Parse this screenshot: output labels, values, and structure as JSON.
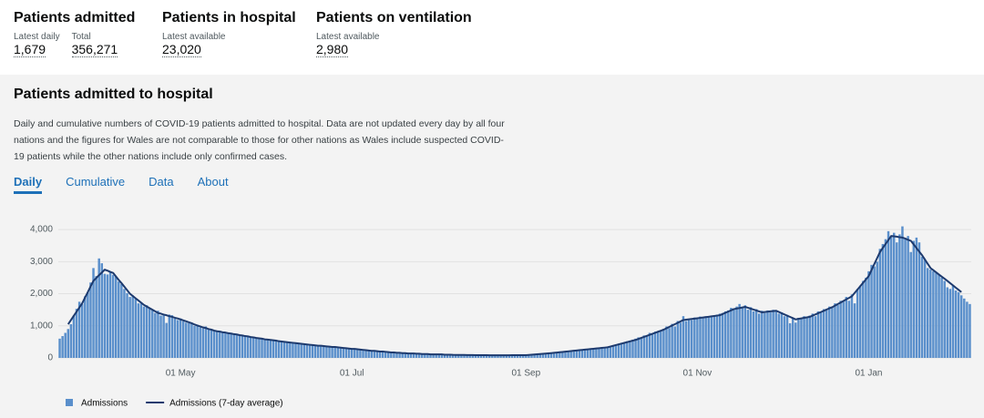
{
  "header": {
    "metrics": [
      {
        "title": "Patients admitted",
        "items": [
          {
            "label": "Latest daily",
            "value": "1,679"
          },
          {
            "label": "Total",
            "value": "356,271"
          }
        ]
      },
      {
        "title": "Patients in hospital",
        "items": [
          {
            "label": "Latest available",
            "value": "23,020"
          }
        ]
      },
      {
        "title": "Patients on ventilation",
        "items": [
          {
            "label": "Latest available",
            "value": "2,980"
          }
        ]
      }
    ]
  },
  "card": {
    "title": "Patients admitted to hospital",
    "description": "Daily and cumulative numbers of COVID-19 patients admitted to hospital. Data are not updated every day by all four nations and the figures for Wales are not comparable to those for other nations as Wales include suspected COVID-19 patients while the other nations include only confirmed cases.",
    "tabs": [
      "Daily",
      "Cumulative",
      "Data",
      "About"
    ],
    "active_tab": 0
  },
  "chart_data": {
    "type": "bar",
    "grid": true,
    "ylim": [
      0,
      4400
    ],
    "yticks": [
      0,
      {
        "value": 1000,
        "label": "1,000"
      },
      {
        "value": 2000,
        "label": "2,000"
      },
      {
        "value": 3000,
        "label": "3,000"
      },
      {
        "value": 4000,
        "label": "4,000"
      }
    ],
    "categories": [
      null,
      null,
      null,
      null,
      null,
      null,
      null,
      null,
      null,
      null,
      null,
      null,
      null,
      null,
      null,
      null,
      null,
      null,
      null,
      null,
      null,
      null,
      null,
      null,
      null,
      null,
      null,
      null,
      null,
      null,
      null,
      null,
      null,
      null,
      null,
      null,
      null,
      null,
      null,
      null,
      null,
      null,
      null,
      "01 May",
      null,
      null,
      null,
      null,
      null,
      null,
      null,
      null,
      null,
      null,
      null,
      null,
      null,
      null,
      null,
      null,
      null,
      null,
      null,
      null,
      null,
      null,
      null,
      null,
      null,
      null,
      null,
      null,
      null,
      null,
      null,
      null,
      null,
      null,
      null,
      null,
      null,
      null,
      null,
      null,
      null,
      null,
      null,
      null,
      null,
      null,
      null,
      null,
      null,
      null,
      null,
      null,
      null,
      null,
      null,
      null,
      null,
      null,
      null,
      null,
      "01 Jul",
      null,
      null,
      null,
      null,
      null,
      null,
      null,
      null,
      null,
      null,
      null,
      null,
      null,
      null,
      null,
      null,
      null,
      null,
      null,
      null,
      null,
      null,
      null,
      null,
      null,
      null,
      null,
      null,
      null,
      null,
      null,
      null,
      null,
      null,
      null,
      null,
      null,
      null,
      null,
      null,
      null,
      null,
      null,
      null,
      null,
      null,
      null,
      null,
      null,
      null,
      null,
      null,
      null,
      null,
      null,
      null,
      null,
      null,
      null,
      null,
      null,
      "01 Sep",
      null,
      null,
      null,
      null,
      null,
      null,
      null,
      null,
      null,
      null,
      null,
      null,
      null,
      null,
      null,
      null,
      null,
      null,
      null,
      null,
      null,
      null,
      null,
      null,
      null,
      null,
      null,
      null,
      null,
      null,
      null,
      null,
      null,
      null,
      null,
      null,
      null,
      null,
      null,
      null,
      null,
      null,
      null,
      null,
      null,
      null,
      null,
      null,
      null,
      null,
      null,
      null,
      null,
      null,
      null,
      null,
      null,
      null,
      null,
      null,
      "01 Nov",
      null,
      null,
      null,
      null,
      null,
      null,
      null,
      null,
      null,
      null,
      null,
      null,
      null,
      null,
      null,
      null,
      null,
      null,
      null,
      null,
      null,
      null,
      null,
      null,
      null,
      null,
      null,
      null,
      null,
      null,
      null,
      null,
      null,
      null,
      null,
      null,
      null,
      null,
      null,
      null,
      null,
      null,
      null,
      null,
      null,
      null,
      null,
      null,
      null,
      null,
      null,
      null,
      null,
      null,
      null,
      null,
      null,
      null,
      null,
      null,
      "01 Jan",
      null,
      null,
      null,
      null,
      null,
      null,
      null,
      null,
      null,
      null,
      null,
      null,
      null,
      null,
      null,
      null,
      null,
      null,
      null,
      null,
      null,
      null,
      null,
      null,
      null,
      null,
      null,
      null,
      null,
      null,
      null,
      null,
      null,
      null,
      null,
      null
    ],
    "series": [
      {
        "name": "Admissions",
        "type": "bar",
        "color": "#5a8fcb",
        "values": [
          600,
          680,
          780,
          900,
          1050,
          1320,
          1530,
          1750,
          1680,
          1920,
          2050,
          2350,
          2800,
          2550,
          3100,
          2950,
          2620,
          2600,
          2700,
          2590,
          2530,
          2380,
          2300,
          2150,
          2020,
          1900,
          1950,
          1840,
          1700,
          1690,
          1600,
          1640,
          1560,
          1480,
          1400,
          1470,
          1320,
          1330,
          1090,
          1350,
          1330,
          1220,
          1180,
          1230,
          1140,
          1100,
          1080,
          1060,
          1000,
          1030,
          950,
          920,
          980,
          880,
          860,
          830,
          820,
          840,
          780,
          800,
          760,
          780,
          730,
          720,
          700,
          720,
          670,
          680,
          640,
          660,
          600,
          620,
          610,
          570,
          580,
          550,
          560,
          530,
          510,
          520,
          490,
          500,
          470,
          480,
          450,
          460,
          430,
          440,
          410,
          420,
          390,
          400,
          370,
          380,
          350,
          360,
          340,
          350,
          320,
          330,
          300,
          310,
          290,
          280,
          270,
          290,
          250,
          260,
          240,
          250,
          220,
          230,
          200,
          210,
          190,
          200,
          180,
          170,
          180,
          160,
          160,
          150,
          150,
          140,
          145,
          130,
          135,
          125,
          130,
          120,
          115,
          110,
          115,
          105,
          110,
          100,
          105,
          95,
          100,
          95,
          92,
          90,
          95,
          88,
          92,
          86,
          90,
          85,
          88,
          84,
          86,
          82,
          86,
          80,
          85,
          82,
          84,
          80,
          86,
          82,
          84,
          86,
          82,
          88,
          84,
          86,
          90,
          95,
          100,
          104,
          112,
          118,
          130,
          132,
          145,
          148,
          160,
          165,
          180,
          185,
          195,
          200,
          215,
          210,
          235,
          240,
          250,
          255,
          270,
          265,
          290,
          285,
          310,
          300,
          330,
          340,
          370,
          390,
          420,
          430,
          470,
          480,
          520,
          510,
          570,
          600,
          640,
          610,
          700,
          680,
          780,
          730,
          820,
          800,
          860,
          900,
          980,
          930,
          1060,
          980,
          1150,
          1100,
          1300,
          1150,
          1220,
          1180,
          1260,
          1210,
          1290,
          1240,
          1300,
          1260,
          1310,
          1290,
          1350,
          1380,
          1400,
          1450,
          1480,
          1560,
          1540,
          1600,
          1680,
          1550,
          1640,
          1500,
          1580,
          1450,
          1520,
          1380,
          1470,
          1400,
          1480,
          1420,
          1500,
          1450,
          1380,
          1420,
          1300,
          1340,
          1080,
          1250,
          1100,
          1250,
          1220,
          1300,
          1260,
          1320,
          1380,
          1300,
          1450,
          1420,
          1520,
          1480,
          1600,
          1560,
          1700,
          1650,
          1780,
          1750,
          1900,
          1780,
          1980,
          1700,
          2150,
          2250,
          2400,
          2500,
          2700,
          2900,
          2850,
          3000,
          3400,
          3550,
          3700,
          3950,
          3800,
          3900,
          3600,
          3850,
          4100,
          3700,
          3800,
          3300,
          3650,
          3750,
          3600,
          3150,
          3050,
          2800,
          2750,
          2700,
          2650,
          2600,
          2500,
          2400,
          2200,
          2150,
          2250,
          2100,
          2050,
          1950,
          1850,
          1750,
          1679
        ]
      },
      {
        "name": "Admissions (7-day average)",
        "type": "line",
        "color": "#1d3a6e",
        "values": [
          null,
          null,
          null,
          1050,
          1180,
          1310,
          1440,
          1570,
          1700,
          1880,
          2050,
          2230,
          2400,
          2490,
          2580,
          2660,
          2750,
          2720,
          2680,
          2650,
          2540,
          2430,
          2330,
          2220,
          2110,
          2000,
          1930,
          1860,
          1790,
          1720,
          1650,
          1600,
          1550,
          1500,
          1450,
          1400,
          1380,
          1350,
          1330,
          1300,
          1280,
          1250,
          1230,
          1200,
          1170,
          1140,
          1110,
          1080,
          1040,
          1010,
          980,
          950,
          930,
          900,
          880,
          850,
          830,
          820,
          800,
          790,
          770,
          760,
          740,
          730,
          710,
          700,
          680,
          670,
          650,
          640,
          620,
          610,
          600,
          580,
          570,
          560,
          550,
          540,
          520,
          510,
          500,
          490,
          480,
          470,
          460,
          450,
          440,
          430,
          420,
          410,
          400,
          390,
          380,
          380,
          370,
          360,
          350,
          340,
          340,
          330,
          320,
          310,
          300,
          290,
          280,
          280,
          270,
          260,
          250,
          240,
          230,
          220,
          220,
          210,
          200,
          200,
          190,
          180,
          170,
          170,
          160,
          160,
          150,
          150,
          140,
          140,
          140,
          130,
          130,
          120,
          120,
          120,
          110,
          110,
          110,
          110,
          110,
          100,
          100,
          100,
          95,
          94,
          93,
          92,
          91,
          90,
          89,
          88,
          87,
          86,
          85,
          84,
          84,
          83,
          83,
          82,
          82,
          82,
          82,
          83,
          83,
          84,
          84,
          84,
          85,
          85,
          85,
          92,
          99,
          106,
          114,
          121,
          128,
          135,
          142,
          150,
          159,
          168,
          177,
          186,
          195,
          204,
          213,
          222,
          231,
          240,
          249,
          258,
          267,
          276,
          285,
          294,
          303,
          312,
          321,
          330,
          353,
          376,
          399,
          422,
          445,
          468,
          491,
          514,
          537,
          560,
          592,
          624,
          656,
          688,
          720,
          752,
          784,
          816,
          848,
          880,
          923,
          966,
          1009,
          1051,
          1094,
          1137,
          1180,
          1191,
          1202,
          1214,
          1225,
          1236,
          1247,
          1259,
          1270,
          1282,
          1294,
          1306,
          1318,
          1330,
          1368,
          1406,
          1444,
          1482,
          1520,
          1538,
          1555,
          1573,
          1590,
          1562,
          1533,
          1505,
          1477,
          1448,
          1420,
          1430,
          1440,
          1450,
          1460,
          1470,
          1431,
          1393,
          1354,
          1316,
          1277,
          1239,
          1200,
          1216,
          1232,
          1248,
          1264,
          1280,
          1318,
          1355,
          1393,
          1430,
          1468,
          1505,
          1543,
          1580,
          1629,
          1677,
          1726,
          1774,
          1823,
          1871,
          1920,
          2025,
          2130,
          2235,
          2340,
          2445,
          2550,
          2737,
          2925,
          3112,
          3300,
          3425,
          3550,
          3675,
          3800,
          3790,
          3780,
          3760,
          3750,
          3720,
          3680,
          3650,
          3537,
          3425,
          3312,
          3200,
          3067,
          2933,
          2800,
          2733,
          2667,
          2600,
          2533,
          2467,
          2400,
          2330,
          2260,
          2190,
          2120,
          2050,
          null,
          null,
          null
        ]
      }
    ]
  }
}
